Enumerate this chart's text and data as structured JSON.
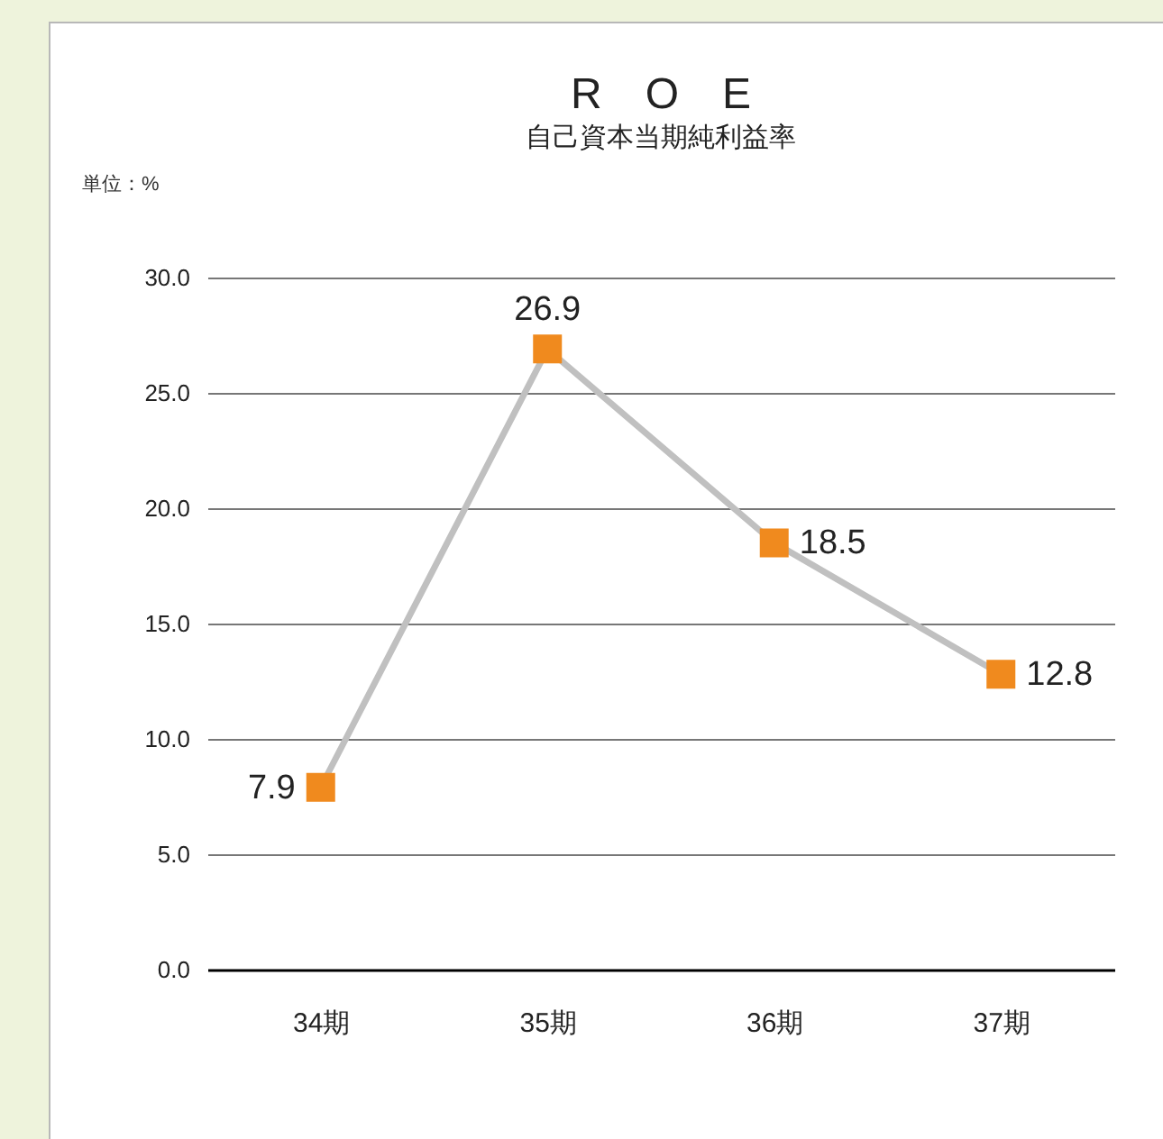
{
  "chart_data": {
    "type": "line",
    "title": "R　O　E",
    "subtitle": "自己資本当期純利益率",
    "ylabel": "単位：%",
    "categories": [
      "34期",
      "35期",
      "36期",
      "37期"
    ],
    "series": [
      {
        "color": "#c0c0c0",
        "colors": [
          "#f08a1e",
          "#f08a1e",
          "#f08a1e",
          "#f08a1e"
        ],
        "values": [
          7.9,
          26.9,
          18.5,
          12.8
        ]
      }
    ],
    "ylim": [
      0,
      30
    ],
    "yticks": [
      {
        "value": 0,
        "label": "0.0"
      },
      {
        "value": 5,
        "label": "5.0"
      },
      {
        "value": 10,
        "label": "10.0"
      },
      {
        "value": 15,
        "label": "15.0"
      },
      {
        "value": 20,
        "label": "20.0"
      },
      {
        "value": 25,
        "label": "25.0"
      },
      {
        "value": 30,
        "label": "30.0"
      }
    ],
    "grid": "y",
    "marker": "square",
    "line_style": "solid",
    "data_labels": true
  }
}
